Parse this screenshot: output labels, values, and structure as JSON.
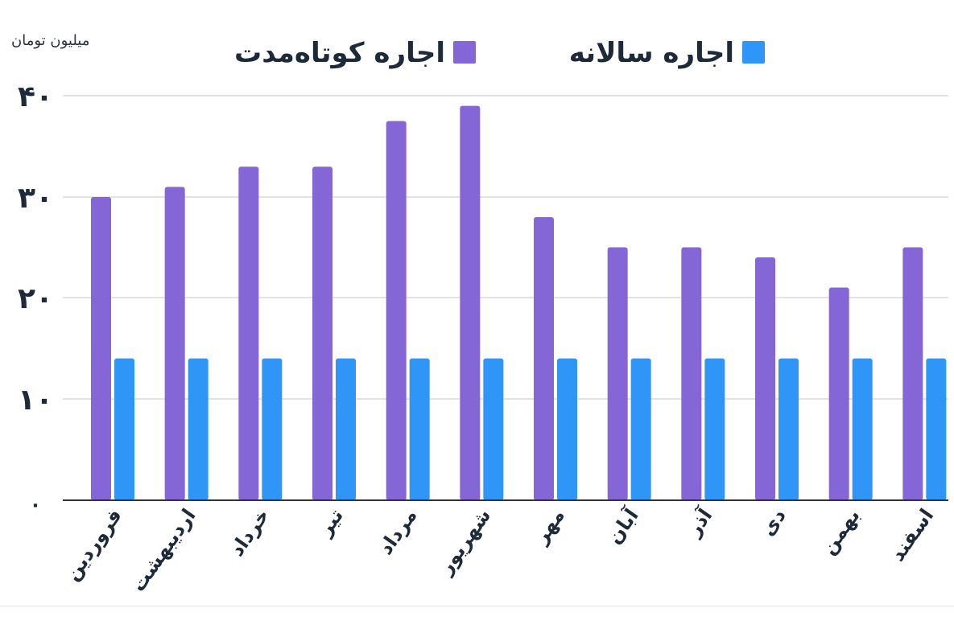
{
  "chart_data": {
    "type": "bar",
    "unit_label": "میلیون تومان",
    "categories": [
      "فروردین",
      "اردیبهشت",
      "خرداد",
      "تیر",
      "مرداد",
      "شهریور",
      "مهر",
      "آبان",
      "آذر",
      "دی",
      "بهمن",
      "اسفند"
    ],
    "series": [
      {
        "name": "اجاره کوتاه‌مدت",
        "color": "#8466d6",
        "values": [
          30,
          31,
          33,
          33,
          37.5,
          39,
          28,
          25,
          25,
          24,
          21,
          25
        ]
      },
      {
        "name": "اجاره سالانه",
        "color": "#2f95f7",
        "values": [
          14,
          14,
          14,
          14,
          14,
          14,
          14,
          14,
          14,
          14,
          14,
          14
        ]
      }
    ],
    "y_ticks": [
      "۰",
      "۱۰",
      "۲۰",
      "۳۰",
      "۴۰"
    ],
    "y_tick_values": [
      0,
      10,
      20,
      30,
      40
    ],
    "ylim": [
      0,
      40
    ],
    "grid": true,
    "legend_position": "top"
  }
}
